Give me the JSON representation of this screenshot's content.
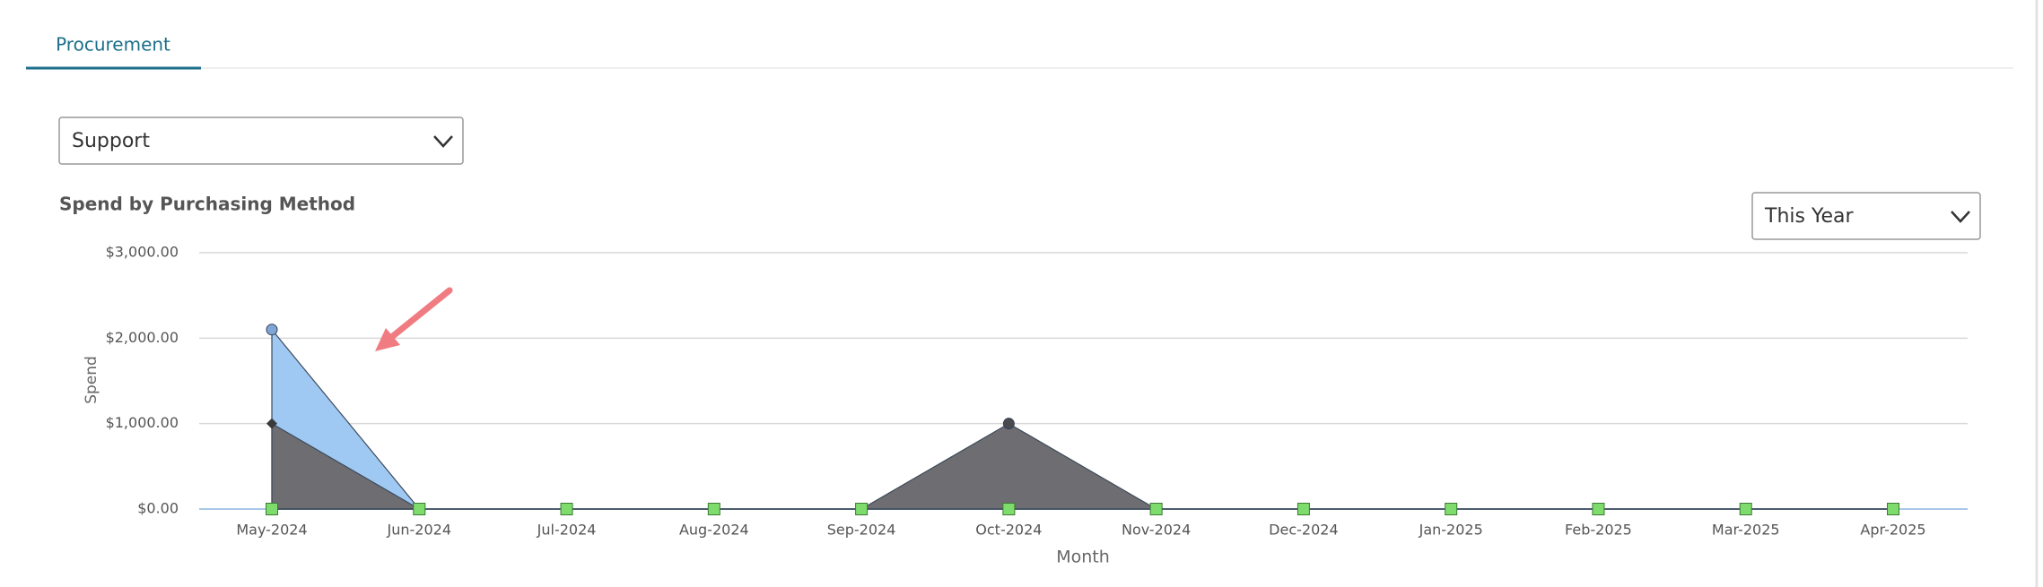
{
  "tabs": [
    "Procurement"
  ],
  "controls": {
    "category_select": "Support",
    "period_select": "This Year"
  },
  "chart_data": {
    "type": "area",
    "title": "Spend by Purchasing Method",
    "x_label": "Month",
    "y_label": "Spend",
    "categories": [
      "May-2024",
      "Jun-2024",
      "Jul-2024",
      "Aug-2024",
      "Sep-2024",
      "Oct-2024",
      "Nov-2024",
      "Dec-2024",
      "Jan-2025",
      "Feb-2025",
      "Mar-2025",
      "Apr-2025"
    ],
    "series": [
      {
        "color": "#9fc9f2",
        "marker": "circle",
        "marker_color": "#7fa6d6",
        "values": [
          2100,
          0,
          0,
          0,
          0,
          0,
          0,
          0,
          0,
          0,
          0,
          0
        ]
      },
      {
        "color": "#6e6d71",
        "marker": "diamond",
        "marker_color": "#3a3a3e",
        "values": [
          1000,
          0,
          0,
          0,
          0,
          0,
          0,
          0,
          0,
          0,
          0,
          0
        ]
      },
      {
        "color": "#6e6d71",
        "marker": "circle",
        "marker_color": "#4a4a4e",
        "values": [
          0,
          0,
          0,
          0,
          0,
          1000,
          0,
          0,
          0,
          0,
          0,
          0
        ]
      },
      {
        "color": "#7ddc6b",
        "marker": "square",
        "marker_color": "#7ddc6b",
        "values": [
          0,
          0,
          0,
          0,
          0,
          0,
          0,
          0,
          0,
          0,
          0,
          0
        ]
      }
    ],
    "ylim": [
      0,
      3000
    ],
    "yticks": [
      {
        "value": 0,
        "label": "$0.00"
      },
      {
        "value": 1000,
        "label": "$1,000.00"
      },
      {
        "value": 2000,
        "label": "$2,000.00"
      },
      {
        "value": 3000,
        "label": "$3,000.00"
      }
    ],
    "grid": true
  }
}
